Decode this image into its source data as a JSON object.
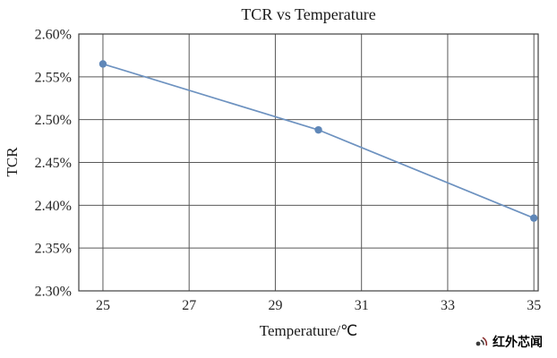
{
  "chart_data": {
    "type": "line",
    "title": "TCR vs Temperature",
    "xlabel": "Temperature/℃",
    "ylabel": "TCR",
    "x": [
      25,
      30,
      35
    ],
    "values": [
      2.565,
      2.488,
      2.385
    ],
    "xlim": [
      24.44,
      35.1
    ],
    "ylim": [
      2.3,
      2.6
    ],
    "xticks": [
      25,
      27,
      29,
      31,
      33,
      35
    ],
    "xtick_labels": [
      "25",
      "27",
      "29",
      "31",
      "33",
      "35"
    ],
    "yticks": [
      2.3,
      2.35,
      2.4,
      2.45,
      2.5,
      2.55,
      2.6
    ],
    "ytick_labels": [
      "2.30%",
      "2.35%",
      "2.40%",
      "2.45%",
      "2.50%",
      "2.55%",
      "2.60%"
    ],
    "grid": true,
    "legend": "none",
    "line_color": "#6d92c0",
    "marker_color": "#5f87b8",
    "grid_color": "#595959",
    "border_color": "#404040",
    "tick_label_color": "#262626"
  },
  "watermark": {
    "text": "红外芯闻",
    "color": "#6e2a2a"
  }
}
